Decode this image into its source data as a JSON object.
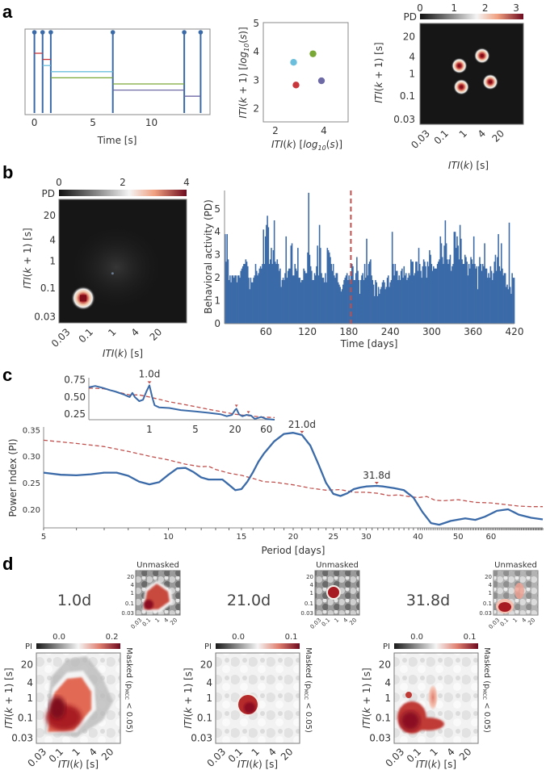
{
  "panel_labels": [
    "a",
    "b",
    "c",
    "d"
  ],
  "colors": {
    "blue": "#3b6aa8",
    "red_dashed": "#c0504d",
    "event_red": "#c8373b",
    "event_cyan": "#6bbfdc",
    "event_green": "#7aa836",
    "event_purple": "#6e6aa6",
    "heatmap_dark": "#161616",
    "heatmap_peak": "#7f0d1a"
  },
  "chart_data": [
    {
      "id": "a1",
      "type": "line",
      "title": "",
      "xlabel": "Time [s]",
      "xlim": [
        -0.8,
        15
      ],
      "xticks": [
        0,
        5,
        10
      ],
      "event_times": [
        0,
        0.7,
        1.4,
        6.7,
        12.8,
        14.2
      ],
      "intervals": [
        {
          "start": 0,
          "end": 0.7,
          "color": "#c8373b",
          "level": 0.8
        },
        {
          "start": 0.7,
          "end": 1.4,
          "color": "#c8373b",
          "level": 0.72
        },
        {
          "start": 0.7,
          "end": 1.4,
          "color": "#6bbfdc",
          "level": 0.64
        },
        {
          "start": 1.4,
          "end": 6.7,
          "color": "#6bbfdc",
          "level": 0.56
        },
        {
          "start": 1.4,
          "end": 6.7,
          "color": "#7aa836",
          "level": 0.48
        },
        {
          "start": 6.7,
          "end": 12.8,
          "color": "#7aa836",
          "level": 0.4
        },
        {
          "start": 6.7,
          "end": 12.8,
          "color": "#6e6aa6",
          "level": 0.32
        },
        {
          "start": 12.8,
          "end": 14.2,
          "color": "#6e6aa6",
          "level": 0.24
        }
      ]
    },
    {
      "id": "a2",
      "type": "scatter",
      "xlabel": "ITI(k) [log10(s)]",
      "ylabel": "ITI(k + 1) [log10(s)]",
      "xlim": [
        1.5,
        5
      ],
      "ylim": [
        1.5,
        5
      ],
      "xticks": [
        2,
        4
      ],
      "yticks": [
        2,
        3,
        4,
        5
      ],
      "points": [
        {
          "x": 2.85,
          "y": 2.8,
          "color": "#c8373b"
        },
        {
          "x": 2.75,
          "y": 3.6,
          "color": "#6bbfdc"
        },
        {
          "x": 3.55,
          "y": 3.9,
          "color": "#7aa836"
        },
        {
          "x": 3.9,
          "y": 2.95,
          "color": "#6e6aa6"
        }
      ]
    },
    {
      "id": "a3",
      "type": "heatmap",
      "colorbar_label": "PD",
      "colorbar_ticks": [
        "0",
        "1",
        "2",
        "3"
      ],
      "xlabel": "ITI(k) [s]",
      "ylabel": "ITI(k + 1) [s]",
      "xticks": [
        "0.03",
        "0.1",
        "1",
        "4",
        "20"
      ],
      "yticks": [
        "20",
        "4",
        "1",
        "0.1",
        "0.03"
      ],
      "peaks": [
        {
          "x": 0.38,
          "y": 0.58
        },
        {
          "x": 0.6,
          "y": 0.68
        },
        {
          "x": 0.4,
          "y": 0.37
        },
        {
          "x": 0.68,
          "y": 0.42
        }
      ]
    },
    {
      "id": "b1",
      "type": "heatmap",
      "colorbar_label": "PD",
      "colorbar_ticks": [
        "0",
        "2",
        "4"
      ],
      "xlabel": "ITI(k) [s]",
      "ylabel": "ITI(k + 1) [s]",
      "xticks": [
        "0.03",
        "0.1",
        "1",
        "4",
        "20"
      ],
      "yticks": [
        "20",
        "4",
        "1",
        "0.1",
        "0.03"
      ],
      "peaks": [
        {
          "x": 0.19,
          "y": 0.2
        }
      ]
    },
    {
      "id": "b2",
      "type": "bar",
      "xlabel": "Time [days]",
      "ylabel": "Behavioral activity (PD)",
      "xlim": [
        0,
        420
      ],
      "ylim": [
        0,
        5.8
      ],
      "xticks": [
        60,
        120,
        180,
        240,
        300,
        360,
        420
      ],
      "yticks": [
        0,
        1,
        2,
        3,
        4,
        5
      ],
      "vline_day": 183,
      "values": [
        3.9,
        2.7,
        3.9,
        2.8,
        1.9,
        2.1,
        1.8,
        2.1,
        2.1,
        2.0,
        2.1,
        2.1,
        1.8,
        2.1,
        2.1,
        2.0,
        2.3,
        2.4,
        2.5,
        2.6,
        2.6,
        2.8,
        2.7,
        2.5,
        2.0,
        1.5,
        2.0,
        1.8,
        1.8,
        2.0,
        2.1,
        2.6,
        2.3,
        2.1,
        2.2,
        2.4,
        2.5,
        2.4,
        2.6,
        4.1,
        2.6,
        3.8,
        4.3,
        4.7,
        4.2,
        2.6,
        2.8,
        3.3,
        2.6,
        3.2,
        4.5,
        2.7,
        2.6,
        2.8,
        2.6,
        2.3,
        2.4,
        1.6,
        1.9,
        2.0,
        1.9,
        2.2,
        3.8,
        2.0,
        2.3,
        2.4,
        2.4,
        3.4,
        3.5,
        2.1,
        2.1,
        2.6,
        2.4,
        2.3,
        3.3,
        2.0,
        2.0,
        1.8,
        1.9,
        1.9,
        2.4,
        2.3,
        2.2,
        2.2,
        3.1,
        5.7,
        3.0,
        2.5,
        2.3,
        1.9,
        1.9,
        2.2,
        2.1,
        2.5,
        3.4,
        2.1,
        4.3,
        3.3,
        2.2,
        2.0,
        2.0,
        1.8,
        2.2,
        1.8,
        3.3,
        3.2,
        3.1,
        2.9,
        2.6,
        2.3,
        2.6,
        2.1,
        2.0,
        2.2,
        2.2,
        1.8,
        1.7,
        1.6,
        1.4,
        1.5,
        1.7,
        1.9,
        2.0,
        2.1,
        2.2,
        1.9,
        2.1,
        1.9,
        2.2,
        2.6,
        2.5,
        1.9,
        1.9,
        2.2,
        2.9,
        2.3,
        1.9,
        1.3,
        1.9,
        2.1,
        2.2,
        1.9,
        2.6,
        2.0,
        3.7,
        2.1,
        2.6,
        2.7,
        2.8,
        2.1,
        1.9,
        1.7,
        1.2,
        1.9,
        1.8,
        1.2,
        1.6,
        1.3,
        1.5,
        1.6,
        1.8,
        1.9,
        1.8,
        1.5,
        1.6,
        2.0,
        2.1,
        1.6,
        1.8,
        1.9,
        4.0,
        2.6,
        2.1,
        2.6,
        2.3,
        2.3,
        1.9,
        2.1,
        1.9,
        2.3,
        2.4,
        2.0,
        2.5,
        2.1,
        2.2,
        1.9,
        2.0,
        2.2,
        2.1,
        2.8,
        2.7,
        2.7,
        2.1,
        2.2,
        2.7,
        2.7,
        2.3,
        3.3,
        2.6,
        2.3,
        2.0,
        2.5,
        2.8,
        2.7,
        2.5,
        2.0,
        2.7,
        2.5,
        3.2,
        3.0,
        2.6,
        2.3,
        2.5,
        2.4,
        2.4,
        2.4,
        2.6,
        2.7,
        2.8,
        3.8,
        3.5,
        2.9,
        2.6,
        3.4,
        4.5,
        3.5,
        2.8,
        2.6,
        2.8,
        3.0,
        2.3,
        2.5,
        2.6,
        4.0,
        4.0,
        3.3,
        3.8,
        3.4,
        2.8,
        4.3,
        3.7,
        2.8,
        2.6,
        2.6,
        3.0,
        2.9,
        2.7,
        2.1,
        2.6,
        2.4,
        2.9,
        2.8,
        2.6,
        3.8,
        2.6,
        2.4,
        2.5,
        1.5,
        2.5,
        2.9,
        2.6,
        2.3,
        2.6,
        2.5,
        3.5,
        2.4,
        2.4,
        2.0,
        2.2,
        2.0,
        2.5,
        2.3,
        1.9,
        2.2,
        2.7,
        3.0,
        2.3,
        2.9,
        3.9,
        2.5,
        2.3,
        3.5,
        2.4,
        2.1,
        2.2,
        2.2,
        1.6,
        1.7,
        1.5,
        4.4,
        1.6,
        1.3,
        2.2,
        2.0,
        2.0
      ],
      "title": ""
    },
    {
      "id": "c_inset",
      "type": "line",
      "xscale": "log",
      "xlim": [
        0.12,
        80
      ],
      "ylim": [
        0.17,
        0.78
      ],
      "xticks": [
        1,
        5,
        20,
        60
      ],
      "yticks": [
        0.25,
        0.5,
        0.75
      ],
      "peak_labels": [
        {
          "text": "1.0d",
          "x": 1.0
        }
      ],
      "peak_markers": [
        1.0,
        21,
        32
      ],
      "series": [
        {
          "name": "power",
          "style": "solid",
          "color": "#3b6aa8",
          "x": [
            0.12,
            0.15,
            0.2,
            0.25,
            0.3,
            0.4,
            0.5,
            0.55,
            0.6,
            0.7,
            0.8,
            0.9,
            1.0,
            1.1,
            1.2,
            1.4,
            2,
            3,
            5,
            8,
            12,
            15,
            18,
            20,
            21,
            23,
            26,
            30,
            35,
            40,
            50,
            60,
            80
          ],
          "y": [
            0.64,
            0.66,
            0.63,
            0.6,
            0.58,
            0.54,
            0.5,
            0.56,
            0.5,
            0.44,
            0.46,
            0.58,
            0.67,
            0.5,
            0.38,
            0.35,
            0.34,
            0.31,
            0.29,
            0.27,
            0.25,
            0.22,
            0.24,
            0.31,
            0.33,
            0.25,
            0.22,
            0.24,
            0.23,
            0.18,
            0.21,
            0.18,
            0.17
          ]
        },
        {
          "name": "significance threshold",
          "style": "dashed",
          "color": "#c0504d",
          "x": [
            0.12,
            0.2,
            0.3,
            0.5,
            0.7,
            1.0,
            1.5,
            2,
            3,
            5,
            8,
            12,
            20,
            30,
            50,
            80
          ],
          "y": [
            0.63,
            0.62,
            0.58,
            0.53,
            0.53,
            0.5,
            0.46,
            0.43,
            0.4,
            0.36,
            0.32,
            0.29,
            0.25,
            0.23,
            0.21,
            0.2
          ]
        }
      ]
    },
    {
      "id": "c_main",
      "type": "line",
      "xscale": "log",
      "xlabel": "Period [days]",
      "ylabel": "Power Index (PI)",
      "xlim": [
        5,
        80
      ],
      "ylim": [
        0.165,
        0.355
      ],
      "xticks": [
        5,
        10,
        15,
        20,
        25,
        30,
        40,
        50,
        60
      ],
      "yticks": [
        0.2,
        0.25,
        0.3,
        0.35
      ],
      "peak_labels": [
        {
          "text": "21.0d",
          "x": 21.0
        },
        {
          "text": "31.8d",
          "x": 31.8
        }
      ],
      "series": [
        {
          "name": "power",
          "style": "solid",
          "color": "#3b6aa8",
          "x": [
            5,
            5.5,
            6,
            6.5,
            7,
            7.5,
            8,
            8.5,
            9,
            9.5,
            10,
            10.5,
            11,
            11.5,
            12,
            12.5,
            13,
            13.5,
            14,
            14.5,
            15,
            15.5,
            16,
            16.5,
            17,
            18,
            19,
            20,
            21,
            22,
            23,
            24,
            25,
            26,
            27,
            28,
            29,
            30,
            31.8,
            33,
            35,
            37,
            39,
            41,
            43,
            45,
            48,
            52,
            55,
            58,
            62,
            66,
            70,
            75,
            80
          ],
          "y": [
            0.269,
            0.265,
            0.264,
            0.266,
            0.269,
            0.269,
            0.263,
            0.252,
            0.247,
            0.251,
            0.265,
            0.277,
            0.278,
            0.27,
            0.26,
            0.256,
            0.256,
            0.256,
            0.246,
            0.236,
            0.238,
            0.252,
            0.27,
            0.29,
            0.305,
            0.328,
            0.342,
            0.344,
            0.34,
            0.32,
            0.285,
            0.25,
            0.229,
            0.225,
            0.23,
            0.238,
            0.241,
            0.243,
            0.244,
            0.243,
            0.24,
            0.236,
            0.222,
            0.195,
            0.174,
            0.171,
            0.178,
            0.183,
            0.18,
            0.186,
            0.197,
            0.2,
            0.19,
            0.184,
            0.181
          ]
        },
        {
          "name": "significance threshold",
          "style": "dashed",
          "color": "#c0504d",
          "x": [
            5,
            6,
            7,
            8,
            9,
            10,
            11,
            12,
            12.5,
            13,
            14,
            15,
            16,
            17,
            18,
            20,
            22,
            24,
            26,
            28,
            30,
            32,
            34,
            36,
            38,
            40,
            42,
            44,
            46,
            50,
            55,
            60,
            65,
            70,
            75,
            80
          ],
          "y": [
            0.33,
            0.324,
            0.318,
            0.309,
            0.3,
            0.293,
            0.285,
            0.28,
            0.281,
            0.275,
            0.268,
            0.264,
            0.258,
            0.252,
            0.251,
            0.246,
            0.24,
            0.236,
            0.237,
            0.232,
            0.232,
            0.23,
            0.226,
            0.227,
            0.224,
            0.222,
            0.224,
            0.217,
            0.216,
            0.218,
            0.213,
            0.212,
            0.209,
            0.206,
            0.205,
            0.205
          ]
        }
      ]
    },
    {
      "id": "d",
      "type": "heatmap",
      "panels": [
        {
          "period": "1.0d",
          "colorbar_ticks": [
            "0.0",
            "0.2"
          ],
          "unmasked_title": "Unmasked",
          "side_label": "Masked (pMCC < 0.05)"
        },
        {
          "period": "21.0d",
          "colorbar_ticks": [
            "0.0",
            "0.1"
          ],
          "unmasked_title": "Unmasked",
          "side_label": "Masked (pMCC < 0.05)"
        },
        {
          "period": "31.8d",
          "colorbar_ticks": [
            "0.0",
            "0.1"
          ],
          "unmasked_title": "Unmasked",
          "side_label": "Masked (pMCC < 0.05)"
        }
      ],
      "colorbar_label": "PI",
      "xlabel": "ITI(k) [s]",
      "ylabel": "ITI(k + 1) [s]",
      "xticks": [
        "0.03",
        "0.1",
        "1",
        "4",
        "20"
      ],
      "yticks": [
        "20",
        "4",
        "1",
        "0.1",
        "0.03"
      ]
    }
  ]
}
